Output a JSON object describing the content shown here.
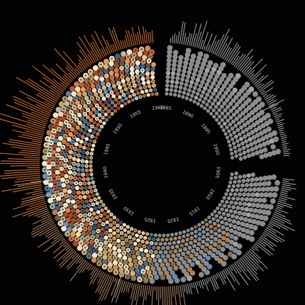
{
  "chart_data": {
    "type": "radial",
    "title": "",
    "start_year": 1885,
    "end_year": 1960,
    "year_ticks": [
      "1885",
      "1890",
      "1895",
      "1900",
      "1905",
      "1910",
      "1915",
      "1920",
      "1925",
      "1930",
      "1935",
      "1940",
      "1945",
      "1950",
      "1955",
      "1960"
    ],
    "series": [
      {
        "color": "#8d8d8d",
        "arc_start_year": 1885,
        "arc_end_year": 1922
      },
      {
        "color": "#c8784a",
        "arc_start_year": 1922,
        "arc_end_year": 1960
      }
    ],
    "palette": {
      "background": "#030303",
      "gray_dot": "#8c8c8c",
      "gray_spike": "#9a9a9a",
      "orange_spike": "#c06a32",
      "tan_spike": "#a77c5c",
      "year_text": "#cfcfcf"
    },
    "annotations": {
      "top_right": "",
      "left_upper": "",
      "left_mid": "",
      "left_lower": "",
      "bottom": ""
    },
    "grid": false,
    "legend": "none"
  }
}
